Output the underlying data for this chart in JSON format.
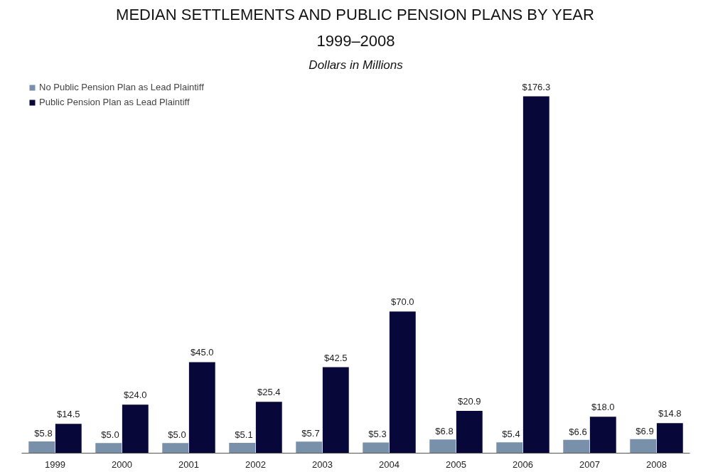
{
  "chart_data": {
    "type": "bar",
    "title": "MEDIAN SETTLEMENTS AND PUBLIC PENSION PLANS BY YEAR",
    "subtitle": "1999–2008",
    "annotations": [
      "Dollars in Millions"
    ],
    "categories": [
      "1999",
      "2000",
      "2001",
      "2002",
      "2003",
      "2004",
      "2005",
      "2006",
      "2007",
      "2008"
    ],
    "series": [
      {
        "name": "No Public Pension Plan as Lead Plaintiff",
        "color": "#7890aa",
        "values": [
          5.8,
          5.0,
          5.0,
          5.1,
          5.7,
          5.3,
          6.8,
          5.4,
          6.6,
          6.9
        ],
        "value_labels": [
          "$5.8",
          "$5.0",
          "$5.0",
          "$5.1",
          "$5.7",
          "$5.3",
          "$6.8",
          "$5.4",
          "$6.6",
          "$6.9"
        ]
      },
      {
        "name": "Public Pension Plan as Lead Plaintiff",
        "color": "#07073a",
        "values": [
          14.5,
          24.0,
          45.0,
          25.4,
          42.5,
          70.0,
          20.9,
          176.3,
          18.0,
          14.8
        ],
        "value_labels": [
          "$14.5",
          "$24.0",
          "$45.0",
          "$25.4",
          "$42.5",
          "$70.0",
          "$20.9",
          "$176.3",
          "$18.0",
          "$14.8"
        ]
      }
    ],
    "grid": false,
    "legend": "top left"
  }
}
